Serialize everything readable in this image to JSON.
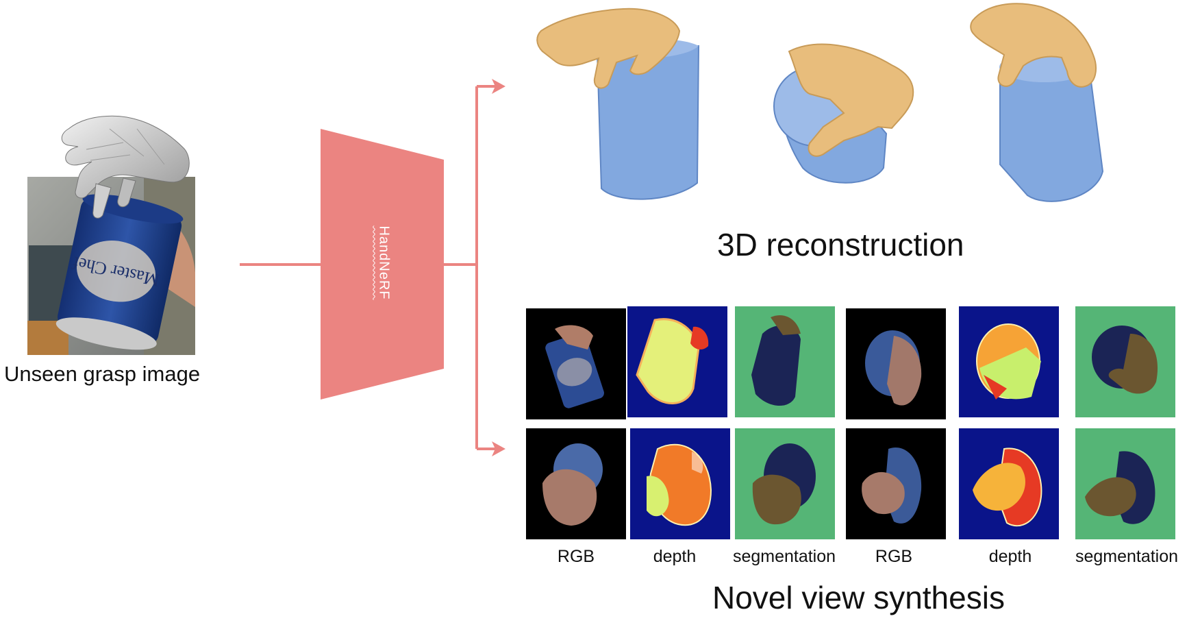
{
  "input": {
    "caption": "Unseen grasp image",
    "can_text": "Master Chef"
  },
  "network": {
    "label": "HandNeRF",
    "color": "#eb8481"
  },
  "sections": {
    "reconstruction_title": "3D reconstruction",
    "nvs_title": "Novel view synthesis"
  },
  "captions": [
    "RGB",
    "depth",
    "segmentation",
    "RGB",
    "depth",
    "segmentation"
  ],
  "colors": {
    "hand": "#e8bd7c",
    "object": "#82a8df",
    "arrow": "#eb8481",
    "depth_bg": "#0a148a",
    "seg_bg": "#55b576",
    "seg_object": "#1b2455",
    "seg_hand": "#6b5630"
  }
}
